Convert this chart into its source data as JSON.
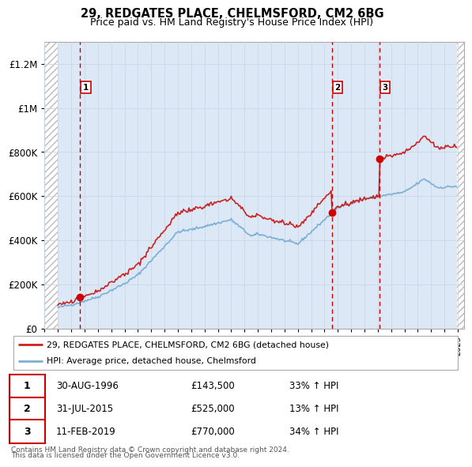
{
  "title": "29, REDGATES PLACE, CHELMSFORD, CM2 6BG",
  "subtitle": "Price paid vs. HM Land Registry's House Price Index (HPI)",
  "hpi_label": "HPI: Average price, detached house, Chelmsford",
  "property_label": "29, REDGATES PLACE, CHELMSFORD, CM2 6BG (detached house)",
  "footer1": "Contains HM Land Registry data © Crown copyright and database right 2024.",
  "footer2": "This data is licensed under the Open Government Licence v3.0.",
  "transactions": [
    {
      "num": 1,
      "date": "30-AUG-1996",
      "price": 143500,
      "pct": "33%",
      "dir": "↑"
    },
    {
      "num": 2,
      "date": "31-JUL-2015",
      "price": 525000,
      "pct": "13%",
      "dir": "↑"
    },
    {
      "num": 3,
      "date": "11-FEB-2019",
      "price": 770000,
      "pct": "34%",
      "dir": "↑"
    }
  ],
  "transaction_years": [
    1996.67,
    2015.58,
    2019.12
  ],
  "transaction_prices": [
    143500,
    525000,
    770000
  ],
  "ylim": [
    0,
    1300000
  ],
  "xlim_start": 1994.0,
  "xlim_end": 2025.5,
  "data_start": 1995.0,
  "data_end": 2024.92,
  "hpi_color": "#7bafd4",
  "property_color": "#cc2222",
  "bg_plot": "#dce8f5",
  "bg_hatch": "#e8e8e8"
}
